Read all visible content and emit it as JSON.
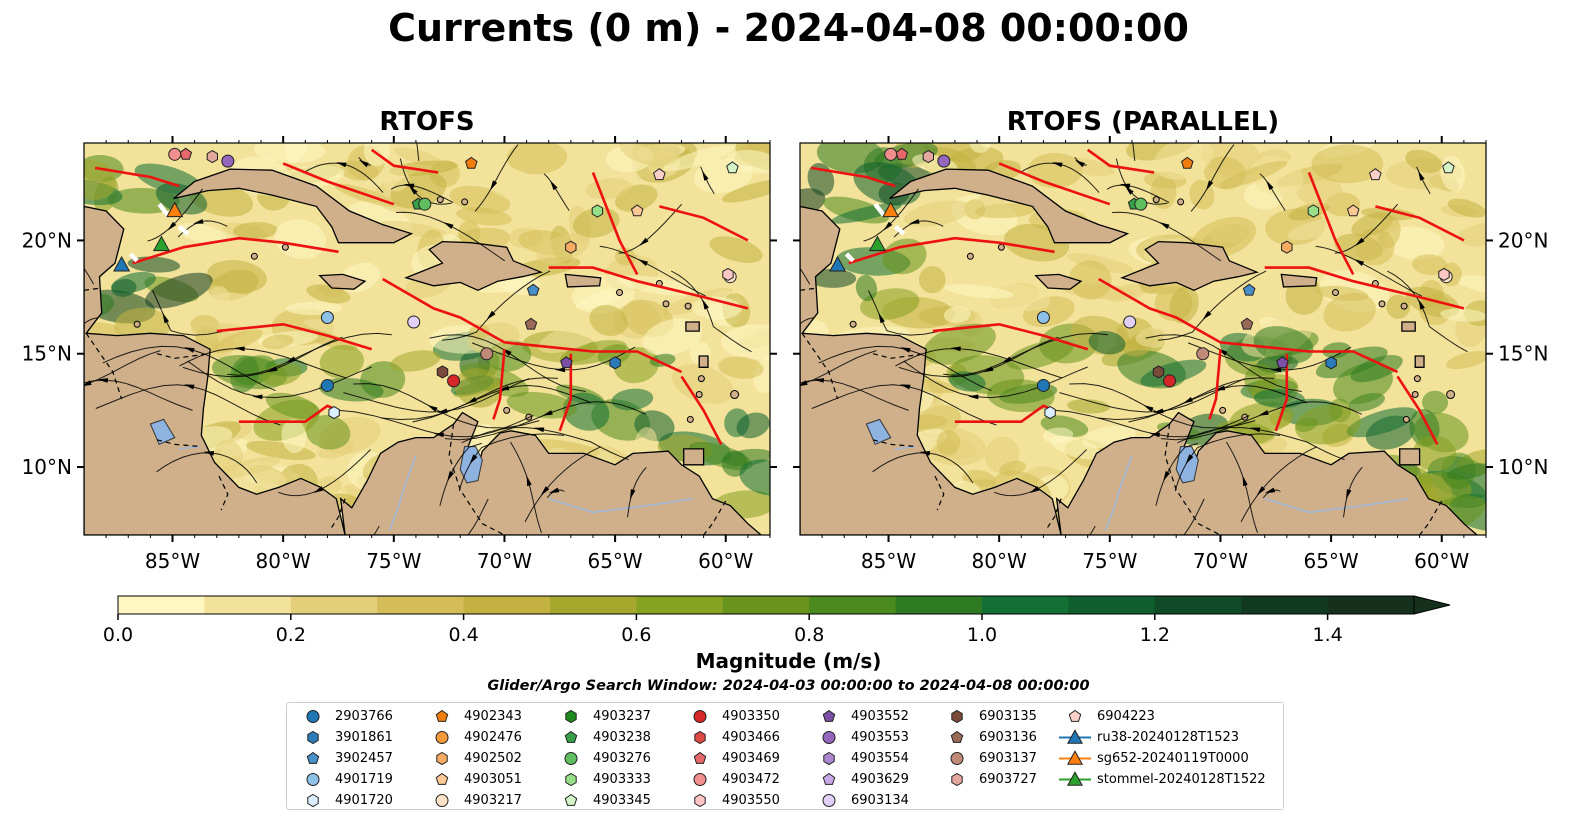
{
  "title": "Currents (0 m) - 2024-04-08 00:00:00",
  "panels": [
    {
      "title": "RTOFS"
    },
    {
      "title": "RTOFS (PARALLEL)"
    }
  ],
  "axes": {
    "lon_ticks": [
      "85°W",
      "80°W",
      "75°W",
      "70°W",
      "65°W",
      "60°W"
    ],
    "lon_values": [
      -85,
      -80,
      -75,
      -70,
      -65,
      -60
    ],
    "lat_ticks": [
      "20°N",
      "15°N",
      "10°N"
    ],
    "lat_values": [
      20,
      15,
      10
    ],
    "lon_range": [
      -89,
      -58
    ],
    "lat_range": [
      7.0,
      24.3
    ]
  },
  "colorbar": {
    "label": "Magnitude (m/s)",
    "tick_labels": [
      "0.0",
      "0.2",
      "0.4",
      "0.6",
      "0.8",
      "1.0",
      "1.2",
      "1.4"
    ],
    "tick_values": [
      0.0,
      0.2,
      0.4,
      0.6,
      0.8,
      1.0,
      1.2,
      1.4
    ],
    "range": [
      0.0,
      1.5
    ],
    "extend": "max",
    "colors": [
      "#fff7c2",
      "#f2e29a",
      "#e3cf7a",
      "#d4bd58",
      "#c3b241",
      "#a5a82d",
      "#87a121",
      "#68941d",
      "#4b8a1e",
      "#2d7a22",
      "#137034",
      "#0e5e2e",
      "#104a26",
      "#123a21",
      "#16301e"
    ]
  },
  "search_window": "Glider/Argo Search Window: 2024-04-03 00:00:00 to 2024-04-08 00:00:00",
  "legend": {
    "columns": [
      [
        {
          "label": "2903766",
          "marker": "circle",
          "color": "#1f77b4"
        },
        {
          "label": "3901861",
          "marker": "hexagon",
          "color": "#2b7bba"
        },
        {
          "label": "3902457",
          "marker": "pentagon",
          "color": "#4a90c8"
        },
        {
          "label": "4901719",
          "marker": "circle",
          "color": "#8ec1e8"
        },
        {
          "label": "4901720",
          "marker": "hexagon",
          "color": "#dbeeff"
        }
      ],
      [
        {
          "label": "4902343",
          "marker": "pentagon",
          "color": "#f07d0d"
        },
        {
          "label": "4902476",
          "marker": "circle",
          "color": "#f59a3a"
        },
        {
          "label": "4902502",
          "marker": "hexagon",
          "color": "#f7ab62"
        },
        {
          "label": "4903051",
          "marker": "pentagon",
          "color": "#fbc896"
        },
        {
          "label": "4903217",
          "marker": "circle",
          "color": "#fde3c6"
        }
      ],
      [
        {
          "label": "4903237",
          "marker": "hexagon",
          "color": "#1e8a1e"
        },
        {
          "label": "4903238",
          "marker": "pentagon",
          "color": "#37a047"
        },
        {
          "label": "4903276",
          "marker": "circle",
          "color": "#5fbf5f"
        },
        {
          "label": "4903333",
          "marker": "hexagon",
          "color": "#98df8a"
        },
        {
          "label": "4903345",
          "marker": "pentagon",
          "color": "#d3f5c8"
        }
      ],
      [
        {
          "label": "4903350",
          "marker": "circle",
          "color": "#d62728"
        },
        {
          "label": "4903466",
          "marker": "hexagon",
          "color": "#dd4a44"
        },
        {
          "label": "4903469",
          "marker": "pentagon",
          "color": "#e7686a"
        },
        {
          "label": "4903472",
          "marker": "circle",
          "color": "#f08f8d"
        },
        {
          "label": "4903550",
          "marker": "hexagon",
          "color": "#fbc6c3"
        }
      ],
      [
        {
          "label": "4903552",
          "marker": "pentagon",
          "color": "#7b4fa6"
        },
        {
          "label": "4903553",
          "marker": "circle",
          "color": "#9467bd"
        },
        {
          "label": "4903554",
          "marker": "hexagon",
          "color": "#ad86d0"
        },
        {
          "label": "4903629",
          "marker": "pentagon",
          "color": "#c8aae6"
        },
        {
          "label": "6903134",
          "marker": "circle",
          "color": "#e2cff5"
        }
      ],
      [
        {
          "label": "6903135",
          "marker": "hexagon",
          "color": "#7a4a3a"
        },
        {
          "label": "6903136",
          "marker": "pentagon",
          "color": "#9a6a58"
        },
        {
          "label": "6903137",
          "marker": "circle",
          "color": "#c08a78"
        },
        {
          "label": "6903727",
          "marker": "hexagon",
          "color": "#e3a79e"
        }
      ],
      [
        {
          "label": "6904223",
          "marker": "pentagon",
          "color": "#fbd0c8"
        },
        {
          "label": "ru38-20240128T1523",
          "marker": "triangle-line",
          "color": "#1f77b4"
        },
        {
          "label": "sg652-20240119T0000",
          "marker": "triangle-line",
          "color": "#ff7f0e"
        },
        {
          "label": "stommel-20240128T1522",
          "marker": "triangle-line",
          "color": "#2ca02c"
        }
      ]
    ]
  },
  "map_colors": {
    "land": "#cfb08a",
    "coast": "#000000",
    "eez": "#ee1111",
    "border": "#000000",
    "river": "#9fb8dc",
    "lake": "#8fb3e0",
    "streamline": "#000000"
  }
}
